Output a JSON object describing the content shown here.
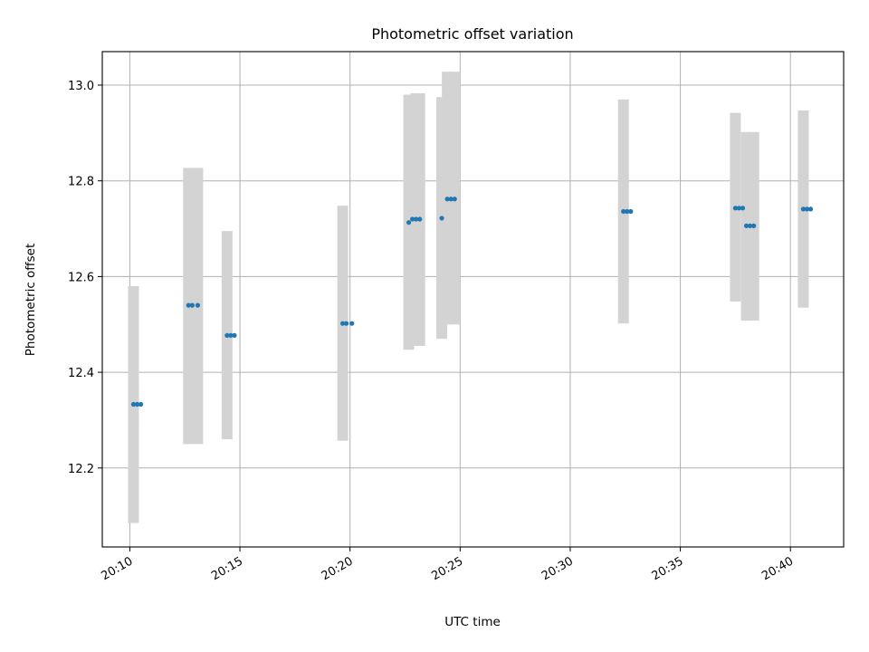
{
  "chart_data": {
    "type": "scatter",
    "title": "Photometric offset variation",
    "xlabel": "UTC time",
    "ylabel": "Photometric offset",
    "x_ticks": [
      "20:10",
      "20:15",
      "20:20",
      "20:25",
      "20:30",
      "20:35",
      "20:40"
    ],
    "y_ticks": [
      "12.2",
      "12.4",
      "12.6",
      "12.8",
      "13.0"
    ],
    "xlim": [
      "20:08:45",
      "20:42:25"
    ],
    "ylim": [
      12.035,
      13.07
    ],
    "grid": true,
    "point_color": "#1f77b4",
    "errorbar_color": "#d3d3d3",
    "points": [
      {
        "t": "20:10:10",
        "y": 12.333,
        "lo": 12.085,
        "hi": 12.58
      },
      {
        "t": "20:10:20",
        "y": 12.333
      },
      {
        "t": "20:10:30",
        "y": 12.333
      },
      {
        "t": "20:12:40",
        "y": 12.54,
        "lo": 12.25,
        "hi": 12.827
      },
      {
        "t": "20:12:50",
        "y": 12.54
      },
      {
        "t": "20:13:05",
        "y": 12.54,
        "lo": 12.25,
        "hi": 12.827
      },
      {
        "t": "20:14:25",
        "y": 12.477,
        "lo": 12.26,
        "hi": 12.695
      },
      {
        "t": "20:14:35",
        "y": 12.477
      },
      {
        "t": "20:14:45",
        "y": 12.477
      },
      {
        "t": "20:19:40",
        "y": 12.502,
        "lo": 12.257,
        "hi": 12.748
      },
      {
        "t": "20:19:50",
        "y": 12.502
      },
      {
        "t": "20:20:05",
        "y": 12.502
      },
      {
        "t": "20:22:40",
        "y": 12.713,
        "lo": 12.447,
        "hi": 12.98
      },
      {
        "t": "20:22:50",
        "y": 12.72
      },
      {
        "t": "20:23:00",
        "y": 12.72,
        "lo": 12.455,
        "hi": 12.983
      },
      {
        "t": "20:23:10",
        "y": 12.72,
        "lo": 12.455,
        "hi": 12.983
      },
      {
        "t": "20:24:10",
        "y": 12.722,
        "lo": 12.47,
        "hi": 12.975
      },
      {
        "t": "20:24:25",
        "y": 12.762,
        "lo": 12.5,
        "hi": 13.028
      },
      {
        "t": "20:24:35",
        "y": 12.762
      },
      {
        "t": "20:24:45",
        "y": 12.762,
        "lo": 12.5,
        "hi": 13.028
      },
      {
        "t": "20:32:25",
        "y": 12.736,
        "lo": 12.502,
        "hi": 12.97
      },
      {
        "t": "20:32:35",
        "y": 12.736
      },
      {
        "t": "20:32:45",
        "y": 12.736
      },
      {
        "t": "20:37:30",
        "y": 12.743,
        "lo": 12.548,
        "hi": 12.942
      },
      {
        "t": "20:37:40",
        "y": 12.743
      },
      {
        "t": "20:37:50",
        "y": 12.743
      },
      {
        "t": "20:38:00",
        "y": 12.706,
        "lo": 12.508,
        "hi": 12.902
      },
      {
        "t": "20:38:10",
        "y": 12.706
      },
      {
        "t": "20:38:20",
        "y": 12.706,
        "lo": 12.508,
        "hi": 12.902
      },
      {
        "t": "20:40:35",
        "y": 12.741,
        "lo": 12.535,
        "hi": 12.947
      },
      {
        "t": "20:40:45",
        "y": 12.741
      },
      {
        "t": "20:40:55",
        "y": 12.741
      }
    ]
  }
}
